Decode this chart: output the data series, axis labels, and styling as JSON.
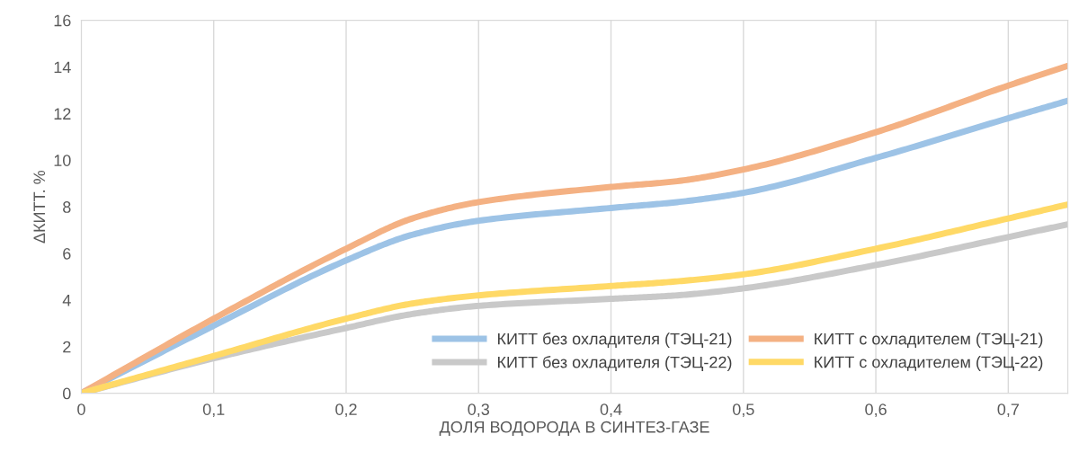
{
  "chart_data": {
    "type": "line",
    "xlabel": "ДОЛЯ ВОДОРОДА В СИНТЕЗ-ГАЗЕ",
    "ylabel": "ΔКИТТ. %",
    "x": [
      0,
      0.1,
      0.2,
      0.25,
      0.3,
      0.4,
      0.45,
      0.5,
      0.6,
      0.7,
      0.745
    ],
    "series": [
      {
        "name": "КИТТ без охладителя (ТЭЦ-21)",
        "color": "#9dc3e6",
        "values": [
          0,
          2.9,
          5.7,
          6.8,
          7.4,
          7.95,
          8.2,
          8.6,
          10.1,
          11.8,
          12.55
        ]
      },
      {
        "name": "КИТТ с охладителем (ТЭЦ-21)",
        "color": "#f4b183",
        "values": [
          0,
          3.2,
          6.2,
          7.5,
          8.2,
          8.85,
          9.1,
          9.6,
          11.2,
          13.2,
          14.05
        ]
      },
      {
        "name": "КИТТ без охладителя (ТЭЦ-22)",
        "color": "#c9c9c9",
        "values": [
          0,
          1.5,
          2.8,
          3.4,
          3.75,
          4.05,
          4.2,
          4.5,
          5.5,
          6.7,
          7.25
        ]
      },
      {
        "name": "КИТТ с охладителем (ТЭЦ-22)",
        "color": "#ffd966",
        "values": [
          0,
          1.6,
          3.2,
          3.85,
          4.2,
          4.6,
          4.8,
          5.1,
          6.2,
          7.5,
          8.1
        ]
      }
    ],
    "xlim": [
      0,
      0.745
    ],
    "ylim": [
      0,
      16
    ],
    "xticks": [
      0,
      {
        "value": 0.1,
        "label": "0,1"
      },
      {
        "value": 0.2,
        "label": "0,2"
      },
      {
        "value": 0.3,
        "label": "0,3"
      },
      {
        "value": 0.4,
        "label": "0,4"
      },
      {
        "value": 0.5,
        "label": "0,5"
      },
      {
        "value": 0.6,
        "label": "0,6"
      },
      {
        "value": 0.7,
        "label": "0,7"
      }
    ],
    "yticks": [
      0,
      2,
      4,
      6,
      8,
      10,
      12,
      14,
      16
    ],
    "grid": "x",
    "legend": "bottom right",
    "marker": "none",
    "line_style": "solid"
  }
}
